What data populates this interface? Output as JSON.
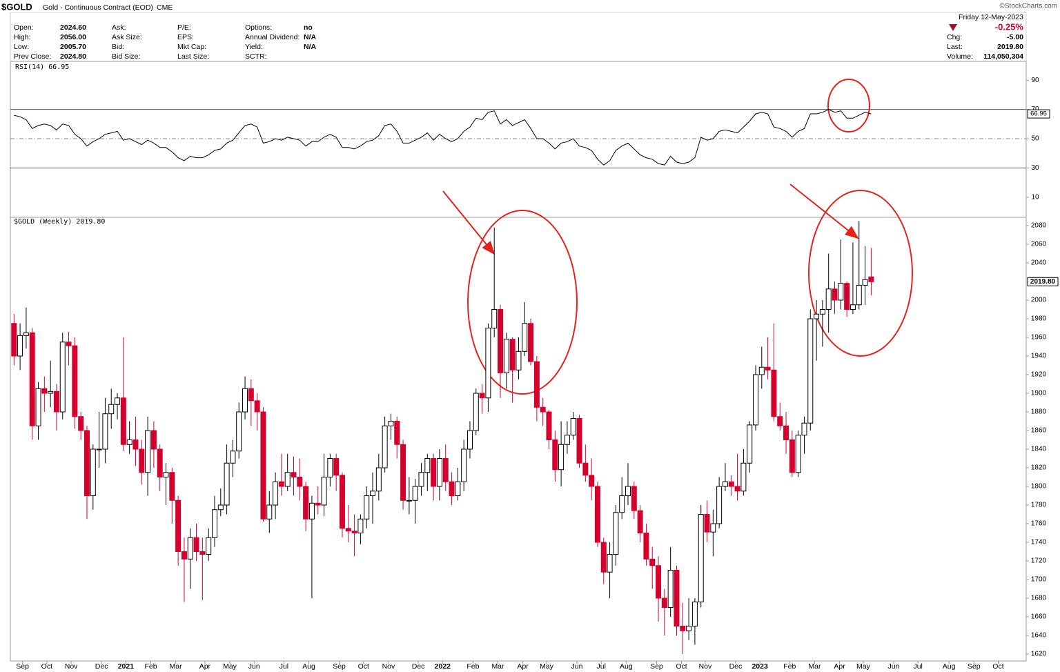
{
  "header": {
    "symbol": "$GOLD",
    "description": "Gold - Continuous Contract (EOD)",
    "exchange": "CME",
    "credit": "©StockCharts.com",
    "date": "Friday 12-May-2023",
    "change_pct": "-0.25%",
    "columns": [
      [
        {
          "label": "Open:",
          "value": "2024.60"
        },
        {
          "label": "High:",
          "value": "2056.00"
        },
        {
          "label": "Low:",
          "value": "2005.70"
        },
        {
          "label": "Prev Close:",
          "value": "2024.80"
        }
      ],
      [
        {
          "label": "Ask:"
        },
        {
          "label": "Ask Size:"
        },
        {
          "label": "Bid:"
        },
        {
          "label": "Bid Size:"
        }
      ],
      [
        {
          "label": "P/E:"
        },
        {
          "label": "EPS:"
        },
        {
          "label": "Mkt Cap:"
        },
        {
          "label": "Last Size:"
        }
      ],
      [
        {
          "label": "Options:",
          "value": "no"
        },
        {
          "label": "Annual Dividend:",
          "value": "N/A"
        },
        {
          "label": "Yield:",
          "value": "N/A"
        },
        {
          "label": "SCTR:"
        }
      ]
    ],
    "right": [
      {
        "label": "Chg:",
        "value": "-5.00"
      },
      {
        "label": "Last:",
        "value": "2019.80"
      },
      {
        "label": "Volume:",
        "value": "114,050,304"
      }
    ]
  },
  "chart_data": [
    {
      "type": "line",
      "title": "RSI(14) 66.95",
      "color": "#000000",
      "values": [
        66,
        65,
        63,
        57,
        59,
        60,
        59,
        56,
        60,
        59,
        53,
        50,
        45,
        48,
        50,
        53,
        54,
        55,
        49,
        50,
        48,
        46,
        49,
        47,
        44,
        44,
        41,
        37,
        35,
        38,
        37,
        37,
        39,
        42,
        43,
        47,
        49,
        54,
        59,
        60,
        58,
        47,
        48,
        50,
        49,
        51,
        50,
        49,
        45,
        48,
        48,
        51,
        53,
        51,
        44,
        44,
        43,
        45,
        48,
        49,
        52,
        59,
        60,
        55,
        47,
        47,
        49,
        51,
        54,
        49,
        53,
        50,
        48,
        50,
        55,
        58,
        64,
        63,
        68,
        69,
        60,
        63,
        59,
        61,
        63,
        57,
        50,
        50,
        47,
        43,
        47,
        48,
        50,
        45,
        44,
        42,
        36,
        32,
        35,
        42,
        45,
        47,
        43,
        39,
        37,
        36,
        33,
        32,
        38,
        34,
        33,
        34,
        37,
        51,
        49,
        50,
        55,
        56,
        55,
        54,
        58,
        62,
        67,
        68,
        67,
        58,
        57,
        55,
        51,
        55,
        57,
        67,
        67,
        68,
        70,
        68,
        69,
        64,
        64,
        66,
        68,
        66.95
      ],
      "ylim": [
        -3.7,
        102.8
      ],
      "yticks": [
        10,
        30,
        50,
        70,
        90
      ],
      "reference_lines": [
        {
          "value": 70,
          "style": "solid"
        },
        {
          "value": 50,
          "style": "dashdot"
        },
        {
          "value": 30,
          "style": "solid"
        }
      ]
    },
    {
      "type": "candlestick",
      "title": "$GOLD (Weekly) 2019.80",
      "last_close_label": "2019.80",
      "up_color": "#ffffff",
      "down_color": "#d6002f",
      "open": [
        1975,
        1940,
        1962,
        1965,
        1865,
        1905,
        1900,
        1902,
        1880,
        1955,
        1951,
        1875,
        1860,
        1790,
        1840,
        1840,
        1878,
        1888,
        1895,
        1845,
        1850,
        1840,
        1815,
        1860,
        1840,
        1810,
        1815,
        1785,
        1730,
        1722,
        1745,
        1730,
        1727,
        1745,
        1775,
        1780,
        1825,
        1838,
        1880,
        1905,
        1892,
        1880,
        1765,
        1780,
        1805,
        1800,
        1815,
        1810,
        1800,
        1765,
        1782,
        1780,
        1810,
        1830,
        1812,
        1755,
        1752,
        1750,
        1765,
        1790,
        1795,
        1820,
        1865,
        1870,
        1845,
        1785,
        1785,
        1800,
        1815,
        1830,
        1800,
        1830,
        1805,
        1790,
        1805,
        1840,
        1860,
        1900,
        1895,
        1970,
        1990,
        1922,
        1958,
        1925,
        1945,
        1975,
        1934,
        1885,
        1880,
        1850,
        1818,
        1845,
        1855,
        1873,
        1825,
        1812,
        1800,
        1740,
        1708,
        1727,
        1772,
        1790,
        1800,
        1774,
        1750,
        1722,
        1715,
        1680,
        1670,
        1710,
        1650,
        1645,
        1650,
        1676,
        1770,
        1751,
        1760,
        1800,
        1805,
        1800,
        1795,
        1825,
        1866,
        1920,
        1928,
        1925,
        1875,
        1865,
        1850,
        1815,
        1855,
        1868,
        1980,
        1985,
        1990,
        2012,
        2000,
        2018,
        1990,
        1995,
        2016,
        2025
      ],
      "high": [
        1985,
        1975,
        1992,
        1970,
        1912,
        1918,
        1935,
        1910,
        1965,
        1966,
        1960,
        1880,
        1865,
        1845,
        1880,
        1895,
        1905,
        1900,
        1960,
        1870,
        1875,
        1850,
        1875,
        1870,
        1845,
        1825,
        1820,
        1790,
        1745,
        1755,
        1760,
        1745,
        1755,
        1790,
        1798,
        1845,
        1850,
        1890,
        1918,
        1915,
        1900,
        1885,
        1795,
        1815,
        1835,
        1835,
        1832,
        1830,
        1805,
        1790,
        1800,
        1835,
        1835,
        1835,
        1815,
        1780,
        1770,
        1770,
        1800,
        1815,
        1835,
        1875,
        1878,
        1875,
        1850,
        1810,
        1808,
        1825,
        1835,
        1835,
        1840,
        1845,
        1815,
        1820,
        1850,
        1870,
        1905,
        1910,
        1975,
        2078,
        1995,
        1965,
        1960,
        1960,
        1998,
        1980,
        1940,
        1895,
        1882,
        1860,
        1870,
        1870,
        1880,
        1877,
        1845,
        1830,
        1805,
        1745,
        1740,
        1780,
        1810,
        1825,
        1805,
        1780,
        1760,
        1735,
        1725,
        1690,
        1735,
        1715,
        1675,
        1680,
        1680,
        1780,
        1785,
        1775,
        1810,
        1825,
        1812,
        1835,
        1840,
        1870,
        1930,
        1950,
        1960,
        1975,
        1890,
        1880,
        1860,
        1860,
        1875,
        1990,
        2000,
        2000,
        2050,
        2020,
        2065,
        2020,
        2062,
        2085,
        2058,
        2056
      ],
      "low": [
        1930,
        1925,
        1948,
        1850,
        1850,
        1880,
        1885,
        1860,
        1872,
        1930,
        1862,
        1850,
        1765,
        1775,
        1820,
        1825,
        1862,
        1872,
        1838,
        1835,
        1822,
        1802,
        1790,
        1820,
        1795,
        1780,
        1760,
        1715,
        1676,
        1690,
        1720,
        1678,
        1720,
        1735,
        1768,
        1770,
        1810,
        1830,
        1872,
        1865,
        1860,
        1762,
        1750,
        1765,
        1790,
        1795,
        1790,
        1785,
        1752,
        1680,
        1770,
        1768,
        1800,
        1795,
        1745,
        1740,
        1725,
        1738,
        1755,
        1760,
        1785,
        1815,
        1850,
        1830,
        1775,
        1770,
        1760,
        1790,
        1795,
        1785,
        1785,
        1795,
        1780,
        1785,
        1795,
        1830,
        1855,
        1878,
        1880,
        1960,
        1895,
        1905,
        1890,
        1915,
        1940,
        1930,
        1870,
        1865,
        1840,
        1805,
        1800,
        1835,
        1850,
        1820,
        1805,
        1785,
        1735,
        1695,
        1680,
        1715,
        1765,
        1780,
        1765,
        1740,
        1715,
        1690,
        1655,
        1640,
        1660,
        1640,
        1620,
        1635,
        1630,
        1670,
        1740,
        1725,
        1755,
        1795,
        1790,
        1785,
        1790,
        1815,
        1860,
        1905,
        1915,
        1870,
        1860,
        1835,
        1810,
        1810,
        1835,
        1860,
        1935,
        1950,
        1965,
        1985,
        1990,
        1982,
        1985,
        1990,
        1995,
        2005
      ],
      "close": [
        1940,
        1962,
        1965,
        1865,
        1905,
        1900,
        1902,
        1880,
        1955,
        1951,
        1875,
        1860,
        1790,
        1840,
        1840,
        1878,
        1888,
        1895,
        1845,
        1850,
        1840,
        1815,
        1860,
        1840,
        1810,
        1815,
        1785,
        1730,
        1722,
        1745,
        1730,
        1727,
        1745,
        1775,
        1780,
        1825,
        1838,
        1880,
        1905,
        1892,
        1880,
        1765,
        1780,
        1805,
        1800,
        1815,
        1810,
        1800,
        1765,
        1782,
        1780,
        1810,
        1830,
        1812,
        1755,
        1752,
        1750,
        1765,
        1790,
        1795,
        1820,
        1865,
        1870,
        1845,
        1785,
        1785,
        1800,
        1815,
        1830,
        1800,
        1830,
        1805,
        1790,
        1805,
        1840,
        1860,
        1900,
        1895,
        1970,
        1990,
        1922,
        1958,
        1925,
        1945,
        1975,
        1934,
        1885,
        1880,
        1850,
        1818,
        1845,
        1855,
        1873,
        1825,
        1812,
        1800,
        1740,
        1708,
        1727,
        1772,
        1790,
        1800,
        1774,
        1750,
        1722,
        1715,
        1680,
        1670,
        1710,
        1650,
        1645,
        1650,
        1676,
        1770,
        1751,
        1760,
        1800,
        1805,
        1800,
        1795,
        1825,
        1866,
        1920,
        1928,
        1925,
        1875,
        1865,
        1850,
        1815,
        1855,
        1868,
        1980,
        1985,
        1990,
        2012,
        2000,
        2018,
        1990,
        1995,
        2016,
        2022,
        2019.8
      ],
      "xlim": [
        -0.6,
        166.5
      ],
      "xticks": [
        {
          "value": 1.4,
          "label": "Sep"
        },
        {
          "value": 5.4,
          "label": "Oct"
        },
        {
          "value": 9.4,
          "label": "Nov"
        },
        {
          "value": 14.4,
          "label": "Dec"
        },
        {
          "value": 18.4,
          "label": "2021"
        },
        {
          "value": 22.5,
          "label": "Feb"
        },
        {
          "value": 26.6,
          "label": "Mar"
        },
        {
          "value": 31.4,
          "label": "Apr"
        },
        {
          "value": 35.5,
          "label": "May"
        },
        {
          "value": 39.5,
          "label": "Jun"
        },
        {
          "value": 44.4,
          "label": "Jul"
        },
        {
          "value": 48.5,
          "label": "Aug"
        },
        {
          "value": 53.5,
          "label": "Sep"
        },
        {
          "value": 57.5,
          "label": "Oct"
        },
        {
          "value": 61.6,
          "label": "Nov"
        },
        {
          "value": 66.5,
          "label": "Dec"
        },
        {
          "value": 70.5,
          "label": "2022"
        },
        {
          "value": 75.5,
          "label": "Feb"
        },
        {
          "value": 79.6,
          "label": "Mar"
        },
        {
          "value": 83.7,
          "label": "Apr"
        },
        {
          "value": 87.6,
          "label": "May"
        },
        {
          "value": 92.6,
          "label": "Jun"
        },
        {
          "value": 96.6,
          "label": "Jul"
        },
        {
          "value": 100.7,
          "label": "Aug"
        },
        {
          "value": 105.7,
          "label": "Sep"
        },
        {
          "value": 109.8,
          "label": "Oct"
        },
        {
          "value": 113.7,
          "label": "Nov"
        },
        {
          "value": 118.7,
          "label": "Dec"
        },
        {
          "value": 122.7,
          "label": "2023"
        },
        {
          "value": 127.6,
          "label": "Feb"
        },
        {
          "value": 131.7,
          "label": "Mar"
        },
        {
          "value": 135.8,
          "label": "Apr"
        },
        {
          "value": 139.7,
          "label": "May"
        },
        {
          "value": 144.7,
          "label": "Jun"
        },
        {
          "value": 148.7,
          "label": "Jul"
        },
        {
          "value": 153.8,
          "label": "Aug"
        },
        {
          "value": 157.9,
          "label": "Sep"
        },
        {
          "value": 161.9,
          "label": "Oct"
        }
      ],
      "ylim": [
        1612.6,
        2088.9
      ],
      "yticks": [
        1620,
        1640,
        1660,
        1680,
        1700,
        1720,
        1740,
        1760,
        1780,
        1800,
        1820,
        1840,
        1860,
        1880,
        1900,
        1920,
        1940,
        1960,
        1980,
        2000,
        2020,
        2040,
        2060,
        2080
      ]
    }
  ]
}
